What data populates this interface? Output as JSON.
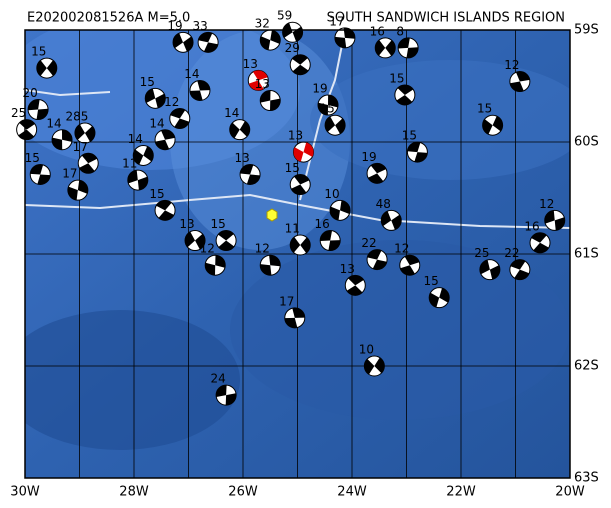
{
  "map": {
    "title": "E202002081526A  M=5.0",
    "region": "SOUTH SANDWICH ISLANDS REGION",
    "lon_range": [
      -30,
      -20
    ],
    "lat_range": [
      -59,
      -63
    ],
    "lon_grid": [
      -30,
      -29,
      -28,
      -27,
      -26,
      -25,
      -24,
      -23,
      -22,
      -21,
      -20
    ],
    "lat_grid": [
      -59,
      -60,
      -61,
      -62,
      -63
    ],
    "lon_ticks": [
      {
        "value": -30,
        "label": "30W"
      },
      {
        "value": -28,
        "label": "28W"
      },
      {
        "value": -26,
        "label": "26W"
      },
      {
        "value": -24,
        "label": "24W"
      },
      {
        "value": -22,
        "label": "22W"
      },
      {
        "value": -20,
        "label": "20W"
      }
    ],
    "lat_ticks": [
      {
        "value": -59,
        "label": "59S"
      },
      {
        "value": -60,
        "label": "60S"
      },
      {
        "value": -61,
        "label": "61S"
      },
      {
        "value": -62,
        "label": "62S"
      },
      {
        "value": -63,
        "label": "63S"
      }
    ],
    "events": [
      {
        "lon": -29.6,
        "lat": -59.34,
        "depth": 15
      },
      {
        "lon": -29.76,
        "lat": -59.71,
        "depth": 20
      },
      {
        "lon": -29.97,
        "lat": -59.89,
        "depth": 25
      },
      {
        "lon": -29.32,
        "lat": -59.98,
        "depth": 14
      },
      {
        "lon": -28.9,
        "lat": -59.92,
        "depth": 285
      },
      {
        "lon": -29.72,
        "lat": -60.29,
        "depth": 15
      },
      {
        "lon": -28.84,
        "lat": -60.19,
        "depth": 17
      },
      {
        "lon": -29.03,
        "lat": -60.43,
        "depth": 17
      },
      {
        "lon": -27.1,
        "lat": -59.11,
        "depth": 19
      },
      {
        "lon": -26.64,
        "lat": -59.11,
        "depth": 33
      },
      {
        "lon": -25.72,
        "lat": -59.45,
        "depth": 13,
        "color": "#e00000"
      },
      {
        "lon": -24.89,
        "lat": -60.09,
        "depth": 13,
        "color": "#e00000"
      },
      {
        "lon": -27.61,
        "lat": -59.61,
        "depth": 15
      },
      {
        "lon": -27.16,
        "lat": -59.79,
        "depth": 12
      },
      {
        "lon": -27.43,
        "lat": -59.98,
        "depth": 14
      },
      {
        "lon": -27.83,
        "lat": -60.12,
        "depth": 14
      },
      {
        "lon": -27.93,
        "lat": -60.34,
        "depth": 11
      },
      {
        "lon": -27.43,
        "lat": -60.61,
        "depth": 15
      },
      {
        "lon": -26.79,
        "lat": -59.54,
        "depth": 14
      },
      {
        "lon": -26.06,
        "lat": -59.89,
        "depth": 14
      },
      {
        "lon": -25.5,
        "lat": -59.63,
        "depth": 13
      },
      {
        "lon": -24.95,
        "lat": -59.31,
        "depth": 29
      },
      {
        "lon": -24.13,
        "lat": -59.07,
        "depth": 17
      },
      {
        "lon": -23.39,
        "lat": -59.16,
        "depth": 16
      },
      {
        "lon": -22.97,
        "lat": -59.16,
        "depth": 8
      },
      {
        "lon": -23.03,
        "lat": -59.58,
        "depth": 15
      },
      {
        "lon": -24.44,
        "lat": -59.67,
        "depth": 19
      },
      {
        "lon": -24.31,
        "lat": -59.85,
        "depth": 15
      },
      {
        "lon": -22.8,
        "lat": -60.09,
        "depth": 15
      },
      {
        "lon": -23.54,
        "lat": -60.28,
        "depth": 19
      },
      {
        "lon": -24.22,
        "lat": -60.61,
        "depth": 10
      },
      {
        "lon": -23.28,
        "lat": -60.7,
        "depth": 48
      },
      {
        "lon": -23.54,
        "lat": -61.05,
        "depth": 22
      },
      {
        "lon": -22.94,
        "lat": -61.1,
        "depth": 12
      },
      {
        "lon": -22.4,
        "lat": -61.39,
        "depth": 15
      },
      {
        "lon": -21.47,
        "lat": -61.14,
        "depth": 25
      },
      {
        "lon": -20.92,
        "lat": -61.14,
        "depth": 22
      },
      {
        "lon": -20.92,
        "lat": -59.46,
        "depth": 12
      },
      {
        "lon": -21.42,
        "lat": -59.85,
        "depth": 15
      },
      {
        "lon": -20.28,
        "lat": -60.7,
        "depth": 12
      },
      {
        "lon": -20.55,
        "lat": -60.9,
        "depth": 16
      },
      {
        "lon": -25.05,
        "lat": -61.57,
        "depth": 17
      },
      {
        "lon": -23.59,
        "lat": -62.0,
        "depth": 10
      },
      {
        "lon": -26.31,
        "lat": -62.26,
        "depth": 24
      },
      {
        "lon": -26.31,
        "lat": -60.88,
        "depth": 15
      },
      {
        "lon": -25.5,
        "lat": -61.1,
        "depth": 12
      },
      {
        "lon": -24.95,
        "lat": -60.92,
        "depth": 11
      },
      {
        "lon": -24.4,
        "lat": -60.88,
        "depth": 16
      },
      {
        "lon": -23.94,
        "lat": -61.28,
        "depth": 13
      },
      {
        "lon": -26.51,
        "lat": -61.1,
        "depth": 12
      },
      {
        "lon": -26.88,
        "lat": -60.88,
        "depth": 13
      },
      {
        "lon": -25.87,
        "lat": -60.29,
        "depth": 13
      },
      {
        "lon": -24.95,
        "lat": -60.38,
        "depth": 15
      },
      {
        "lon": -25.5,
        "lat": -59.09,
        "depth": 32
      },
      {
        "lon": -25.09,
        "lat": -59.02,
        "depth": 59
      }
    ]
  }
}
